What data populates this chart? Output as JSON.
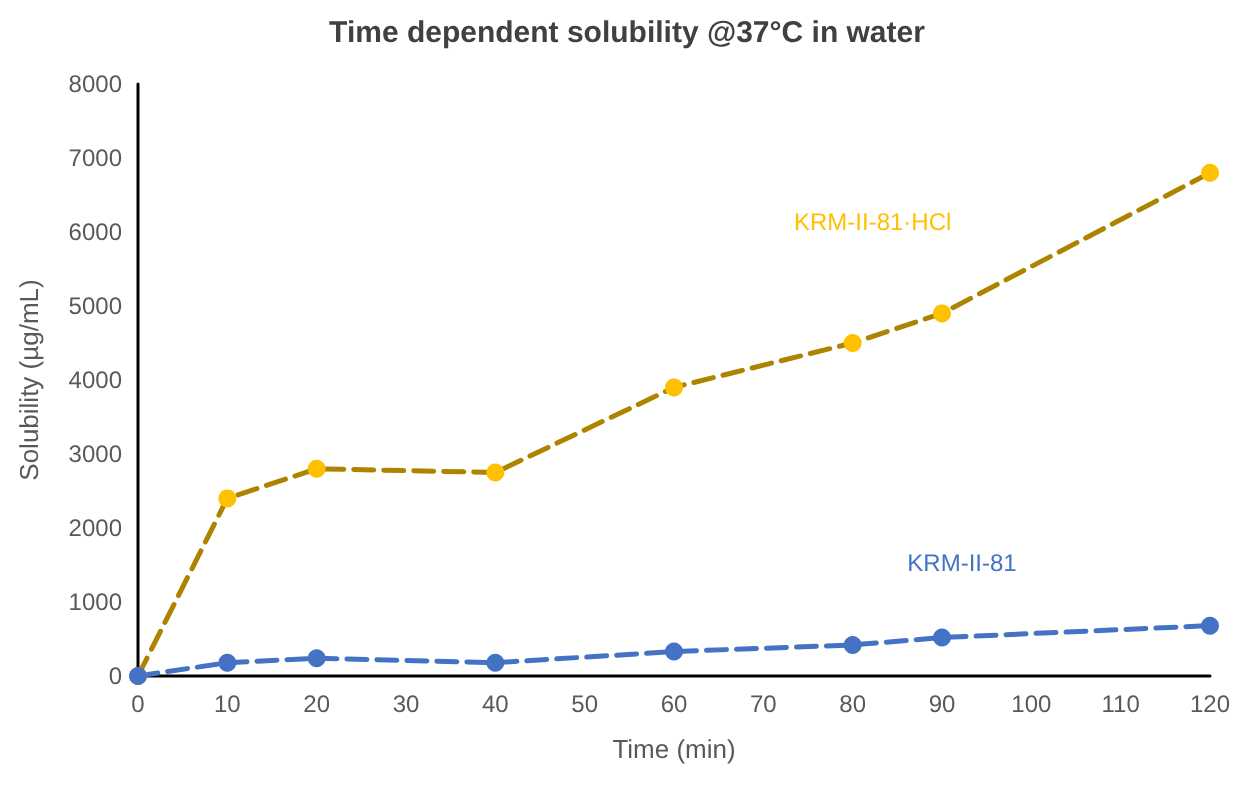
{
  "chart_data": {
    "type": "line",
    "title": "Time dependent solubility @37°C in water",
    "xlabel": "Time (min)",
    "ylabel": "Solubility (µg/mL)",
    "x": [
      0,
      10,
      20,
      40,
      60,
      80,
      90,
      120
    ],
    "series": [
      {
        "name": "KRM-II-81·HCl",
        "color": "#ffc000",
        "values": [
          0,
          2400,
          2800,
          2750,
          3900,
          4500,
          4900,
          6800
        ]
      },
      {
        "name": "KRM-II-81",
        "color": "#4472c4",
        "values": [
          0,
          180,
          240,
          180,
          330,
          420,
          520,
          680
        ]
      }
    ],
    "xlim": [
      0,
      120
    ],
    "xticks": [
      0,
      10,
      20,
      30,
      40,
      50,
      60,
      70,
      80,
      90,
      100,
      110,
      120
    ],
    "ylim": [
      0,
      8000
    ],
    "yticks": [
      0,
      1000,
      2000,
      3000,
      4000,
      5000,
      6000,
      7000,
      8000
    ],
    "grid": false,
    "legend": false,
    "marker": "circle",
    "line_style": "dashed"
  }
}
